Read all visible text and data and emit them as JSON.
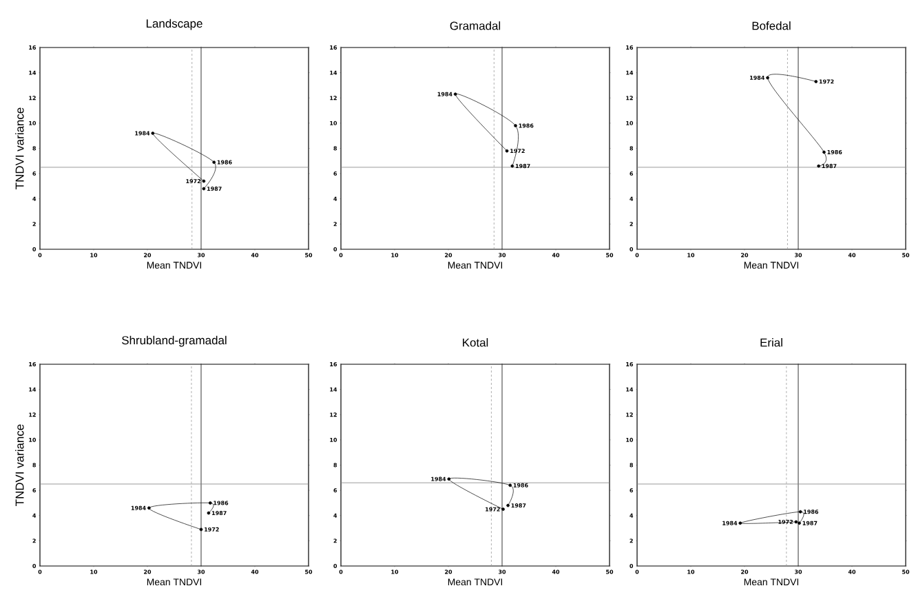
{
  "chart_data": [
    {
      "type": "line",
      "title": "Landscape",
      "xlabel": "Mean TNDVI",
      "ylabel": "TNDVI variance",
      "xlim": [
        0,
        50
      ],
      "ylim": [
        0,
        16
      ],
      "xticks": [
        0,
        10,
        20,
        30,
        40,
        50
      ],
      "yticks": [
        0,
        2,
        4,
        6,
        8,
        10,
        12,
        14,
        16
      ],
      "marker": "circle",
      "line_style": "solid",
      "series": [
        {
          "color": "#000000",
          "x": [
            30.5,
            21,
            32.4,
            30.5
          ],
          "values": [
            5.4,
            9.2,
            6.9,
            4.8
          ]
        }
      ],
      "annotations": [
        {
          "text": "1972",
          "x": 30.5,
          "y": 5.4
        },
        {
          "text": "1984",
          "x": 21,
          "y": 9.2
        },
        {
          "text": "1986",
          "x": 32.4,
          "y": 6.9
        },
        {
          "text": "1987",
          "x": 30.5,
          "y": 4.8
        }
      ],
      "ref_lines": [
        {
          "axis": "x",
          "value": 30,
          "color": "#000000",
          "line_style": "solid"
        },
        {
          "axis": "x",
          "value": 28.3,
          "color": "#999999",
          "line_style": "dashed"
        },
        {
          "axis": "y",
          "value": 6.5,
          "color": "#808080",
          "line_style": "solid"
        }
      ]
    },
    {
      "type": "line",
      "title": "Gramadal",
      "xlabel": "Mean TNDVI",
      "xlim": [
        0,
        50
      ],
      "ylim": [
        0,
        16
      ],
      "xticks": [
        0,
        10,
        20,
        30,
        40,
        50
      ],
      "yticks": [
        0,
        2,
        4,
        6,
        8,
        10,
        12,
        14,
        16
      ],
      "marker": "circle",
      "line_style": "solid",
      "series": [
        {
          "color": "#000000",
          "x": [
            30.9,
            21.3,
            32.5,
            31.9
          ],
          "values": [
            7.8,
            12.3,
            9.8,
            6.6
          ]
        }
      ],
      "annotations": [
        {
          "text": "1972",
          "x": 30.9,
          "y": 7.8
        },
        {
          "text": "1984",
          "x": 21.3,
          "y": 12.3
        },
        {
          "text": "1986",
          "x": 32.5,
          "y": 9.8
        },
        {
          "text": "1987",
          "x": 31.9,
          "y": 6.6
        }
      ],
      "ref_lines": [
        {
          "axis": "x",
          "value": 30,
          "color": "#000000",
          "line_style": "solid"
        },
        {
          "axis": "x",
          "value": 28.5,
          "color": "#999999",
          "line_style": "dashed"
        },
        {
          "axis": "y",
          "value": 6.5,
          "color": "#808080",
          "line_style": "solid"
        }
      ]
    },
    {
      "type": "line",
      "title": "Bofedal",
      "xlabel": "Mean TNDVI",
      "xlim": [
        0,
        50
      ],
      "ylim": [
        0,
        16
      ],
      "xticks": [
        0,
        10,
        20,
        30,
        40,
        50
      ],
      "yticks": [
        0,
        2,
        4,
        6,
        8,
        10,
        12,
        14,
        16
      ],
      "marker": "circle",
      "line_style": "solid",
      "series": [
        {
          "color": "#000000",
          "x": [
            33.3,
            24.3,
            34.8,
            33.8
          ],
          "values": [
            13.3,
            13.6,
            7.7,
            6.6
          ]
        }
      ],
      "annotations": [
        {
          "text": "1972",
          "x": 33.3,
          "y": 13.3
        },
        {
          "text": "1984",
          "x": 24.3,
          "y": 13.6
        },
        {
          "text": "1986",
          "x": 34.8,
          "y": 7.7
        },
        {
          "text": "1987",
          "x": 33.8,
          "y": 6.6
        }
      ],
      "ref_lines": [
        {
          "axis": "x",
          "value": 30,
          "color": "#000000",
          "line_style": "solid"
        },
        {
          "axis": "x",
          "value": 28,
          "color": "#999999",
          "line_style": "dashed"
        },
        {
          "axis": "y",
          "value": 6.5,
          "color": "#808080",
          "line_style": "solid"
        }
      ]
    },
    {
      "type": "line",
      "title": "Shrubland-gramadal",
      "xlabel": "Mean TNDVI",
      "ylabel": "TNDVI variance",
      "xlim": [
        0,
        50
      ],
      "ylim": [
        0,
        16
      ],
      "xticks": [
        0,
        10,
        20,
        30,
        40,
        50
      ],
      "yticks": [
        0,
        2,
        4,
        6,
        8,
        10,
        12,
        14,
        16
      ],
      "marker": "circle",
      "line_style": "solid",
      "series": [
        {
          "color": "#000000",
          "x": [
            30,
            20.3,
            31.7,
            31.4
          ],
          "values": [
            2.9,
            4.6,
            5.0,
            4.2
          ]
        }
      ],
      "annotations": [
        {
          "text": "1972",
          "x": 30,
          "y": 2.9
        },
        {
          "text": "1984",
          "x": 20.3,
          "y": 4.6
        },
        {
          "text": "1986",
          "x": 31.7,
          "y": 5.0
        },
        {
          "text": "1987",
          "x": 31.4,
          "y": 4.2
        }
      ],
      "ref_lines": [
        {
          "axis": "x",
          "value": 30,
          "color": "#000000",
          "line_style": "solid"
        },
        {
          "axis": "x",
          "value": 28.2,
          "color": "#999999",
          "line_style": "dashed"
        },
        {
          "axis": "y",
          "value": 6.5,
          "color": "#808080",
          "line_style": "solid"
        }
      ]
    },
    {
      "type": "line",
      "title": "Kotal",
      "xlabel": "Mean TNDVI",
      "xlim": [
        0,
        50
      ],
      "ylim": [
        0,
        16
      ],
      "xticks": [
        0,
        10,
        20,
        30,
        40,
        50
      ],
      "yticks": [
        0,
        2,
        4,
        6,
        8,
        10,
        12,
        14,
        16
      ],
      "marker": "circle",
      "line_style": "solid",
      "series": [
        {
          "color": "#000000",
          "x": [
            30.2,
            20.1,
            31.5,
            31.1
          ],
          "values": [
            4.5,
            6.9,
            6.4,
            4.8
          ]
        }
      ],
      "annotations": [
        {
          "text": "1972",
          "x": 30.2,
          "y": 4.5
        },
        {
          "text": "1984",
          "x": 20.1,
          "y": 6.9
        },
        {
          "text": "1986",
          "x": 31.5,
          "y": 6.4
        },
        {
          "text": "1987",
          "x": 31.1,
          "y": 4.8
        }
      ],
      "ref_lines": [
        {
          "axis": "x",
          "value": 30,
          "color": "#000000",
          "line_style": "solid"
        },
        {
          "axis": "x",
          "value": 28,
          "color": "#999999",
          "line_style": "dashed"
        },
        {
          "axis": "y",
          "value": 6.6,
          "color": "#808080",
          "line_style": "solid"
        }
      ]
    },
    {
      "type": "line",
      "title": "Erial",
      "xlabel": "Mean TNDVI",
      "xlim": [
        0,
        50
      ],
      "ylim": [
        0,
        16
      ],
      "xticks": [
        0,
        10,
        20,
        30,
        40,
        50
      ],
      "yticks": [
        0,
        2,
        4,
        6,
        8,
        10,
        12,
        14,
        16
      ],
      "marker": "circle",
      "line_style": "solid",
      "series": [
        {
          "color": "#000000",
          "x": [
            29.6,
            19.2,
            30.4,
            30.2
          ],
          "values": [
            3.5,
            3.4,
            4.3,
            3.4
          ]
        }
      ],
      "annotations": [
        {
          "text": "1972",
          "x": 29.6,
          "y": 3.5
        },
        {
          "text": "1984",
          "x": 19.2,
          "y": 3.4
        },
        {
          "text": "1986",
          "x": 30.4,
          "y": 4.3
        },
        {
          "text": "1987",
          "x": 30.2,
          "y": 3.4
        }
      ],
      "ref_lines": [
        {
          "axis": "x",
          "value": 30,
          "color": "#000000",
          "line_style": "solid"
        },
        {
          "axis": "x",
          "value": 27.8,
          "color": "#999999",
          "line_style": "dashed"
        },
        {
          "axis": "y",
          "value": 6.5,
          "color": "#808080",
          "line_style": "solid"
        }
      ]
    }
  ]
}
